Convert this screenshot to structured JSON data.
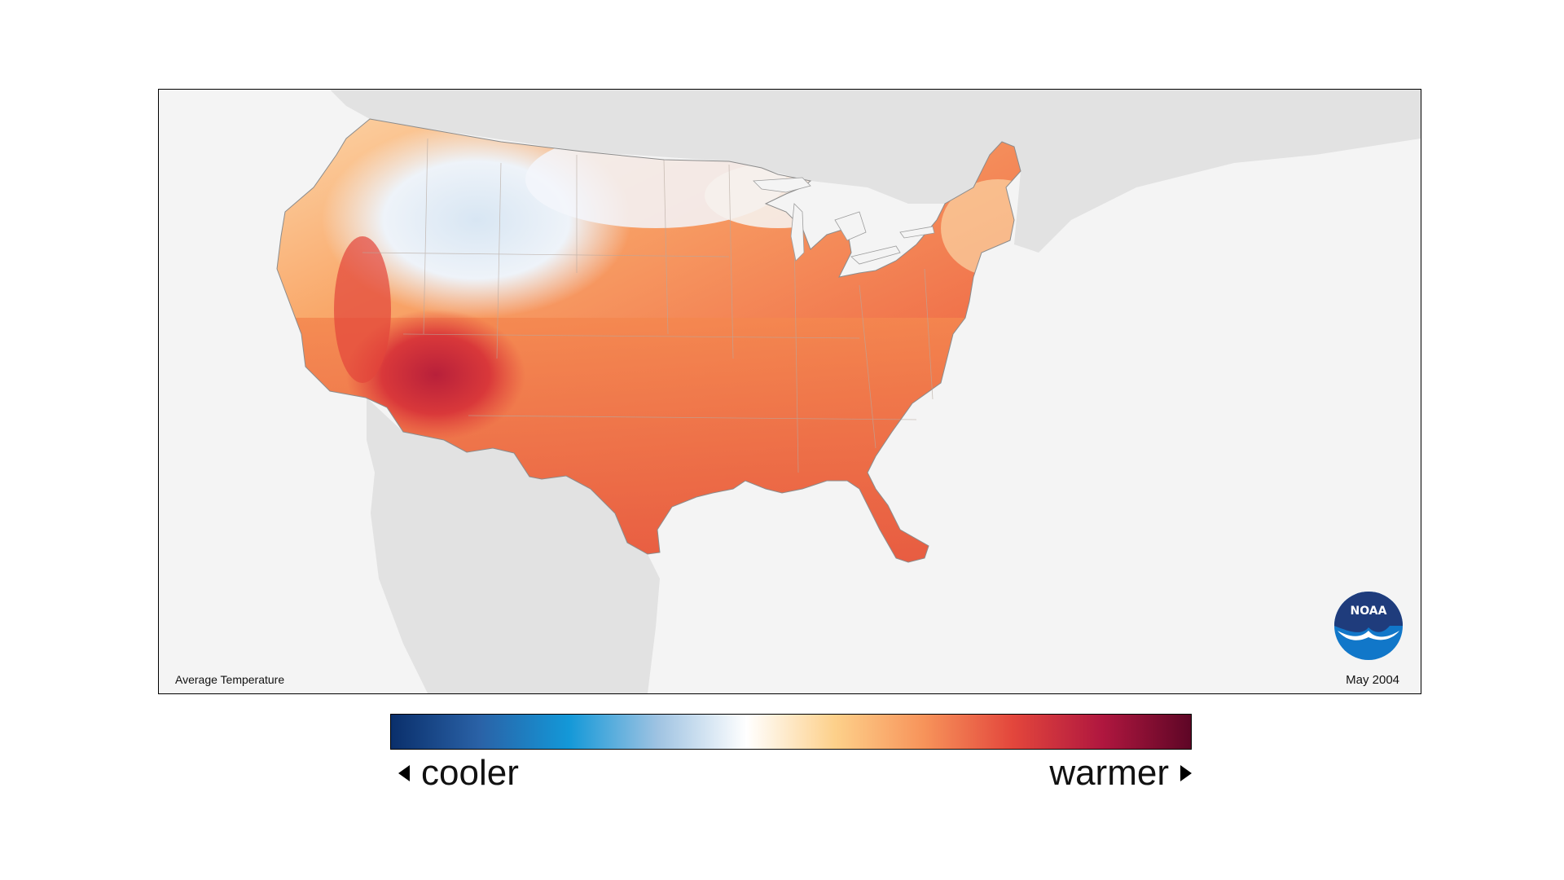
{
  "map": {
    "title": "Average Temperature",
    "date": "May 2004",
    "logo_text": "NOAA",
    "background_color": "#f4f4f4",
    "land_color": "#e2e2e2"
  },
  "legend": {
    "cooler_label": "cooler",
    "warmer_label": "warmer",
    "colors": [
      "#0a2f6b",
      "#2a62a7",
      "#1398d8",
      "#9fc3e2",
      "#ffffff",
      "#fdd08a",
      "#f7935a",
      "#e3463c",
      "#b0173f",
      "#5e0626"
    ]
  }
}
